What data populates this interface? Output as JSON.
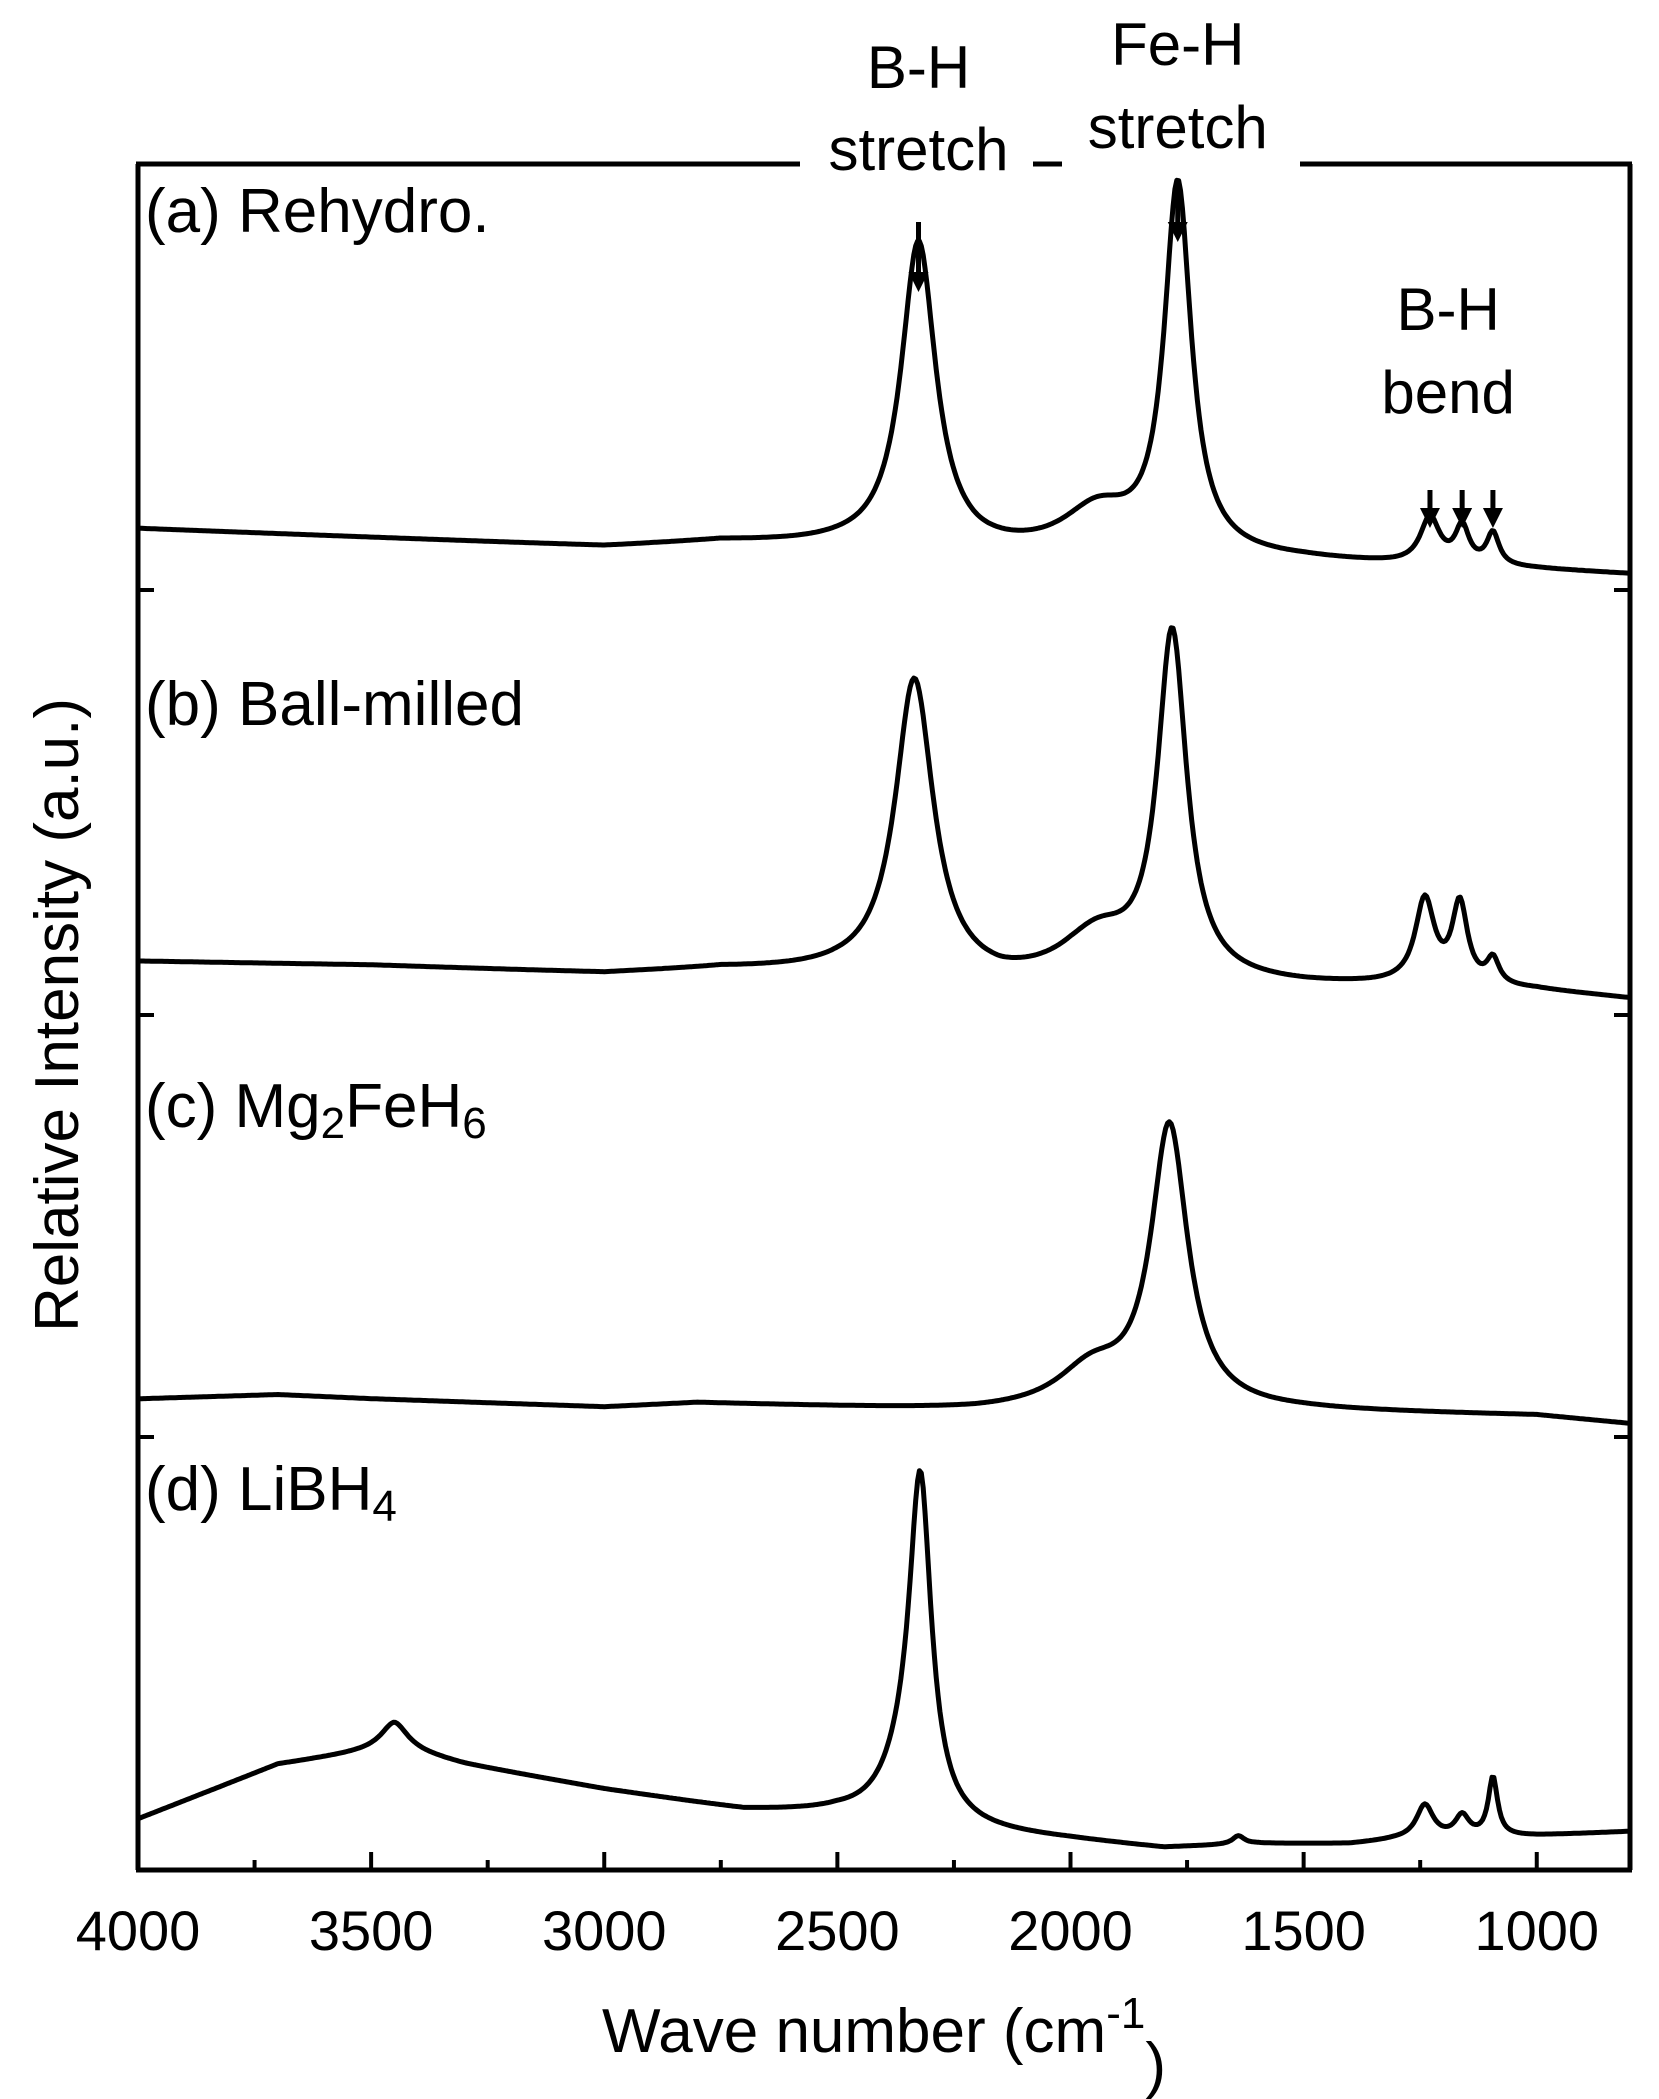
{
  "chart_data": {
    "type": "line",
    "title": "",
    "xlabel": "Wave number (cm",
    "xlabel_sup": "-1",
    "xlabel_close": ")",
    "ylabel": "Relative Intensity (a.u.)",
    "xlim": [
      4000,
      800
    ],
    "x_reversed": true,
    "x_ticks": [
      4000,
      3500,
      3000,
      2500,
      2000,
      1500,
      1000
    ],
    "y_ticks_shown": false,
    "grid": false,
    "stacked": true,
    "series": [
      {
        "label": "(a) Rehydro.",
        "label_parts": [
          {
            "t": "(a) Rehydro.",
            "s": ""
          }
        ],
        "baseline": [
          [
            4000,
            0.09
          ],
          [
            3500,
            0.07
          ],
          [
            3000,
            0.05
          ],
          [
            2750,
            0.06
          ],
          [
            2500,
            0.05
          ],
          [
            2200,
            0.03
          ],
          [
            2000,
            0.03
          ],
          [
            1500,
            0.02
          ],
          [
            1300,
            0.01
          ],
          [
            1000,
            0.0
          ],
          [
            800,
            -0.01
          ]
        ],
        "peaks": [
          {
            "x": 2326,
            "h": 0.67,
            "w": 45
          },
          {
            "x": 1942,
            "h": 0.09,
            "w": 90
          },
          {
            "x": 1770,
            "h": 0.8,
            "w": 35
          },
          {
            "x": 1229,
            "h": 0.1,
            "w": 25
          },
          {
            "x": 1160,
            "h": 0.08,
            "w": 18
          },
          {
            "x": 1094,
            "h": 0.07,
            "w": 16
          }
        ]
      },
      {
        "label": "(b) Ball-milled",
        "label_parts": [
          {
            "t": "(b) Ball-milled",
            "s": ""
          }
        ],
        "baseline": [
          [
            4000,
            0.08
          ],
          [
            3500,
            0.07
          ],
          [
            3000,
            0.05
          ],
          [
            2750,
            0.06
          ],
          [
            2500,
            0.05
          ],
          [
            2150,
            0.02
          ],
          [
            2000,
            0.03
          ],
          [
            1500,
            0.02
          ],
          [
            1300,
            0.02
          ],
          [
            1000,
            0.01
          ],
          [
            800,
            -0.01
          ]
        ],
        "peaks": [
          {
            "x": 2335,
            "h": 0.71,
            "w": 50
          },
          {
            "x": 1942,
            "h": 0.1,
            "w": 90
          },
          {
            "x": 1782,
            "h": 0.82,
            "w": 38
          },
          {
            "x": 1240,
            "h": 0.2,
            "w": 25
          },
          {
            "x": 1165,
            "h": 0.19,
            "w": 20
          },
          {
            "x": 1094,
            "h": 0.06,
            "w": 16
          }
        ]
      },
      {
        "label": "(c) Mg2FeH6",
        "label_parts": [
          {
            "t": "(c) Mg",
            "s": ""
          },
          {
            "t": "2",
            "s": "sub"
          },
          {
            "t": "FeH",
            "s": ""
          },
          {
            "t": "6",
            "s": "sub"
          }
        ],
        "baseline": [
          [
            4000,
            0.05
          ],
          [
            3700,
            0.06
          ],
          [
            3500,
            0.05
          ],
          [
            3000,
            0.03
          ],
          [
            2800,
            0.04
          ],
          [
            2500,
            0.03
          ],
          [
            2200,
            0.02
          ],
          [
            2000,
            0.02
          ],
          [
            1500,
            0.02
          ],
          [
            1000,
            0.01
          ],
          [
            800,
            -0.01
          ]
        ],
        "peaks": [
          {
            "x": 1955,
            "h": 0.09,
            "w": 90
          },
          {
            "x": 1788,
            "h": 0.67,
            "w": 48
          }
        ]
      },
      {
        "label": "(d) LiBH4",
        "label_parts": [
          {
            "t": "(d) LiBH",
            "s": ""
          },
          {
            "t": "4",
            "s": "sub"
          }
        ],
        "baseline": [
          [
            4000,
            0.05
          ],
          [
            3700,
            0.18
          ],
          [
            3450,
            0.22
          ],
          [
            3300,
            0.18
          ],
          [
            3000,
            0.12
          ],
          [
            2700,
            0.07
          ],
          [
            2500,
            0.06
          ],
          [
            2250,
            0.02
          ],
          [
            2000,
            0.0
          ],
          [
            1800,
            -0.02
          ],
          [
            1600,
            -0.01
          ],
          [
            1400,
            -0.01
          ],
          [
            1300,
            0.0
          ],
          [
            1000,
            0.01
          ],
          [
            800,
            0.02
          ]
        ],
        "peaks": [
          {
            "x": 3450,
            "h": 0.06,
            "w": 35
          },
          {
            "x": 2322,
            "h": 0.75,
            "w": 28
          },
          {
            "x": 2350,
            "h": 0.12,
            "w": 60
          },
          {
            "x": 1640,
            "h": 0.02,
            "w": 15
          },
          {
            "x": 1240,
            "h": 0.08,
            "w": 22
          },
          {
            "x": 1160,
            "h": 0.05,
            "w": 18
          },
          {
            "x": 1094,
            "h": 0.14,
            "w": 12
          }
        ]
      }
    ],
    "annotations": [
      {
        "lines": [
          "B-H",
          "stretch"
        ],
        "x": 2326,
        "arrows": [
          2326
        ]
      },
      {
        "lines": [
          "Fe-H",
          "stretch"
        ],
        "x": 1770,
        "arrows": [
          1770
        ]
      },
      {
        "lines": [
          "B-H",
          "bend"
        ],
        "x": 1160,
        "arrows": [
          1229,
          1160,
          1094
        ]
      }
    ]
  }
}
